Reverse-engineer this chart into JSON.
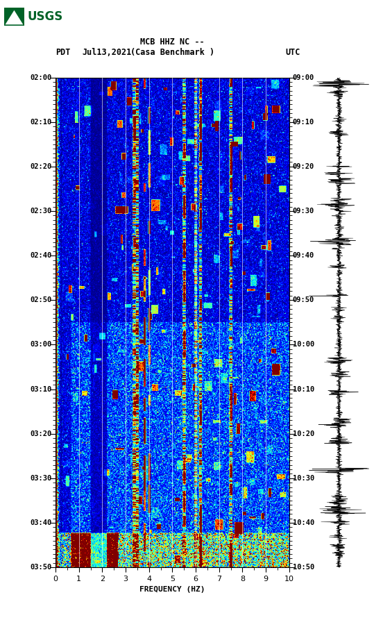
{
  "title_line1": "MCB HHZ NC --",
  "title_line2": "(Casa Benchmark )",
  "left_label": "PDT",
  "date_label": "Jul13,2021",
  "right_label": "UTC",
  "xlabel": "FREQUENCY (HZ)",
  "freq_min": 0,
  "freq_max": 10,
  "time_ticks_pdt": [
    "02:00",
    "02:10",
    "02:20",
    "02:30",
    "02:40",
    "02:50",
    "03:00",
    "03:10",
    "03:20",
    "03:30",
    "03:40",
    "03:50"
  ],
  "time_ticks_utc": [
    "09:00",
    "09:10",
    "09:20",
    "09:30",
    "09:40",
    "09:50",
    "10:00",
    "10:10",
    "10:20",
    "10:30",
    "10:40",
    "10:50"
  ],
  "vertical_lines_freq": [
    1,
    2,
    3,
    4,
    5,
    6,
    7,
    8,
    9
  ],
  "bg_color": "white",
  "usgs_green": "#006227",
  "fig_width": 5.52,
  "fig_height": 8.93,
  "seed": 42,
  "n_freq_bins": 300,
  "n_time_bins": 600
}
